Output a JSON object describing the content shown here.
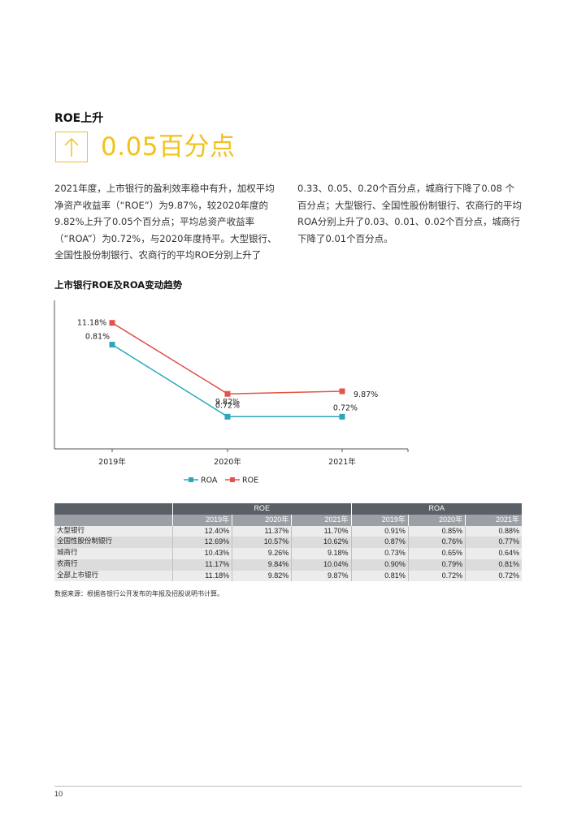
{
  "section_title": "ROE上升",
  "headline": {
    "arrow_icon": "up-arrow-icon",
    "number": "0.05百分点",
    "accent_color": "#f2c21b"
  },
  "paragraph": {
    "left": "2021年度，上市银行的盈利效率稳中有升，加权平均净资产收益率（“ROE”）为9.87%，较2020年度的9.82%上升了0.05个百分点；平均总资产收益率（“ROA”）为0.72%，与2020年度持平。大型银行、全国性股份制银行、农商行的平均ROE分别上升了",
    "right": "0.33、0.05、0.20个百分点，城商行下降了0.08 个百分点；大型银行、全国性股份制银行、农商行的平均ROA分别上升了0.03、0.01、0.02个百分点，城商行下降了0.01个百分点。"
  },
  "chart_title": "上市银行ROE及ROA变动趋势",
  "chart_data": {
    "type": "line",
    "categories": [
      "2019年",
      "2020年",
      "2021年"
    ],
    "series": [
      {
        "name": "ROA",
        "values": [
          0.81,
          0.72,
          0.72
        ],
        "labels": [
          "0.81%",
          "0.72%",
          "0.72%"
        ],
        "color": "#2aa6bd"
      },
      {
        "name": "ROE",
        "values": [
          11.18,
          9.82,
          9.87
        ],
        "labels": [
          "11.18%",
          "9.82%",
          "9.87%"
        ],
        "color": "#e3524b"
      }
    ],
    "legend_position": "bottom",
    "grid": false,
    "ylim": [
      0,
      12
    ]
  },
  "table": {
    "group_headers": [
      "ROE",
      "ROA"
    ],
    "year_headers": [
      "2019年",
      "2020年",
      "2021年",
      "2019年",
      "2020年",
      "2021年"
    ],
    "rows": [
      {
        "name": "大型银行",
        "values": [
          "12.40%",
          "11.37%",
          "11.70%",
          "0.91%",
          "0.85%",
          "0.88%"
        ]
      },
      {
        "name": "全国性股份制银行",
        "values": [
          "12.69%",
          "10.57%",
          "10.62%",
          "0.87%",
          "0.76%",
          "0.77%"
        ]
      },
      {
        "name": "城商行",
        "values": [
          "10.43%",
          "9.26%",
          "9.18%",
          "0.73%",
          "0.65%",
          "0.64%"
        ]
      },
      {
        "name": "农商行",
        "values": [
          "11.17%",
          "9.84%",
          "10.04%",
          "0.90%",
          "0.79%",
          "0.81%"
        ]
      },
      {
        "name": "全部上市银行",
        "values": [
          "11.18%",
          "9.82%",
          "9.87%",
          "0.81%",
          "0.72%",
          "0.72%"
        ]
      }
    ]
  },
  "source_note": "数据来源：根据各银行公开发布的年报及招股说明书计算。",
  "page_number": "10"
}
